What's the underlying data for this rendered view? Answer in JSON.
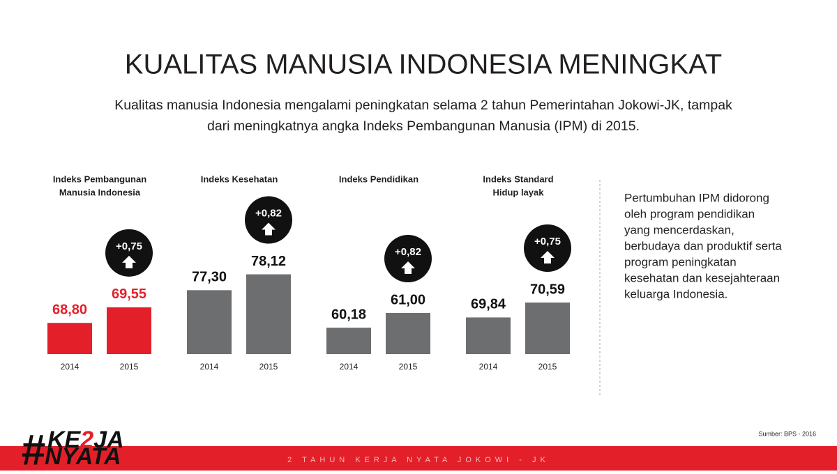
{
  "header": {
    "title": "KUALITAS MANUSIA INDONESIA MENINGKAT",
    "subtitle": [
      "Kualitas manusia Indonesia mengalami peningkatan selama 2 tahun Pemerintahan Jokowi-JK, tampak",
      "dari meningkatnya angka Indeks Pembangunan Manusia (IPM) di 2015."
    ]
  },
  "chart_data": [
    {
      "type": "bar",
      "title": [
        "Indeks Pembangunan",
        "Manusia Indonesia"
      ],
      "categories": [
        "2014",
        "2015"
      ],
      "values": [
        68.8,
        69.55
      ],
      "value_labels": [
        "68,80",
        "69,55"
      ],
      "color": "#e3202a",
      "label_color": "#e3202a",
      "ylim": [
        67.3,
        74
      ],
      "annotation": "+0,75"
    },
    {
      "type": "bar",
      "title": [
        "Indeks Kesehatan"
      ],
      "categories": [
        "2014",
        "2015"
      ],
      "values": [
        77.3,
        78.12
      ],
      "value_labels": [
        "77,30",
        "78,12"
      ],
      "color": "#6d6e70",
      "label_color": "#111111",
      "ylim": [
        74,
        81.2
      ],
      "annotation": "+0,82"
    },
    {
      "type": "bar",
      "title": [
        "Indeks Pendidikan"
      ],
      "categories": [
        "2014",
        "2015"
      ],
      "values": [
        60.18,
        61.0
      ],
      "value_labels": [
        "60,18",
        "61,00"
      ],
      "color": "#6d6e70",
      "label_color": "#111111",
      "ylim": [
        58.7,
        66.5
      ],
      "annotation": "+0,82"
    },
    {
      "type": "bar",
      "title": [
        "Indeks Standard",
        "Hidup layak"
      ],
      "categories": [
        "2014",
        "2015"
      ],
      "values": [
        69.84,
        70.59
      ],
      "value_labels": [
        "69,84",
        "70,59"
      ],
      "color": "#6d6e70",
      "label_color": "#111111",
      "ylim": [
        68,
        75
      ],
      "annotation": "+0,75"
    }
  ],
  "side_text": [
    "Pertumbuhan IPM didorong",
    "oleh program pendidikan",
    "yang mencerdaskan,",
    "berbudaya dan produktif serta",
    "program peningkatan",
    "kesehatan dan kesejahteraan",
    "keluarga Indonesia."
  ],
  "source": "Sumber: BPS - 2016",
  "logo": {
    "hash": "#",
    "line1_a": "KE",
    "accent": "2",
    "line1_b": "JA",
    "line2": "NYATA"
  },
  "footer": "2 TAHUN KERJA NYATA JOKOWI - JK"
}
